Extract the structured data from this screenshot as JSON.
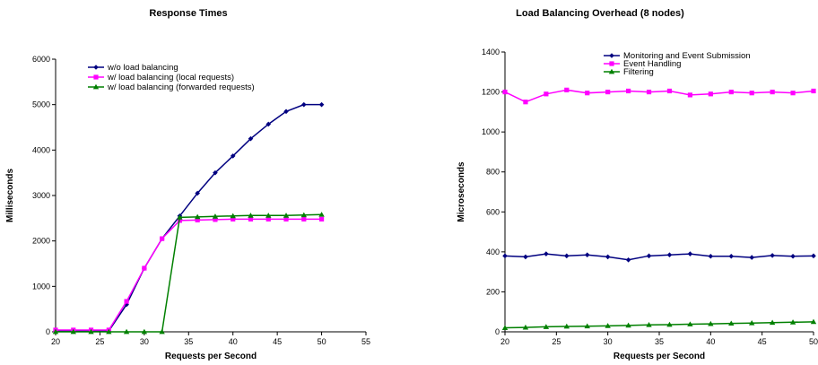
{
  "chart_data": [
    {
      "type": "line",
      "title": "Response Times",
      "xlabel": "Requests per Second",
      "ylabel": "Milliseconds",
      "xlim": [
        20,
        55
      ],
      "ylim": [
        0,
        6000
      ],
      "xticks": [
        20,
        25,
        30,
        35,
        40,
        45,
        50,
        55
      ],
      "yticks": [
        0,
        1000,
        2000,
        3000,
        4000,
        5000,
        6000
      ],
      "legend_position": "top-left",
      "grid": false,
      "series": [
        {
          "name": "w/o load balancing",
          "color": "#000080",
          "marker": "diamond",
          "x": [
            20,
            22,
            24,
            26,
            28,
            30,
            32,
            34,
            36,
            38,
            40,
            42,
            44,
            46,
            48,
            50
          ],
          "y": [
            20,
            20,
            20,
            20,
            600,
            1400,
            2050,
            2550,
            3050,
            3500,
            3870,
            4250,
            4570,
            4850,
            5000,
            5000
          ]
        },
        {
          "name": "w/ load balancing (local requests)",
          "color": "#ff00ff",
          "marker": "square",
          "x": [
            20,
            22,
            24,
            26,
            28,
            30,
            32,
            34,
            36,
            38,
            40,
            42,
            44,
            46,
            48,
            50
          ],
          "y": [
            40,
            40,
            40,
            40,
            670,
            1400,
            2050,
            2450,
            2460,
            2470,
            2480,
            2480,
            2480,
            2480,
            2480,
            2480
          ]
        },
        {
          "name": "w/ load balancing (forwarded requests)",
          "color": "#008000",
          "marker": "triangle",
          "x": [
            20,
            22,
            24,
            26,
            28,
            30,
            32,
            34,
            36,
            38,
            40,
            42,
            44,
            46,
            48,
            50
          ],
          "y": [
            0,
            0,
            0,
            0,
            0,
            0,
            0,
            2520,
            2530,
            2540,
            2550,
            2560,
            2560,
            2560,
            2570,
            2580
          ]
        }
      ]
    },
    {
      "type": "line",
      "title": "Load Balancing Overhead (8 nodes)",
      "xlabel": "Requests per Second",
      "ylabel": "Microseconds",
      "xlim": [
        20,
        50
      ],
      "ylim": [
        0,
        1400
      ],
      "xticks": [
        20,
        25,
        30,
        35,
        40,
        45,
        50
      ],
      "yticks": [
        0,
        200,
        400,
        600,
        800,
        1000,
        1200,
        1400
      ],
      "legend_position": "top-right",
      "grid": false,
      "series": [
        {
          "name": "Monitoring and Event Submission",
          "color": "#000080",
          "marker": "diamond",
          "x": [
            20,
            22,
            24,
            26,
            28,
            30,
            32,
            34,
            36,
            38,
            40,
            42,
            44,
            46,
            48,
            50
          ],
          "y": [
            380,
            375,
            390,
            380,
            385,
            375,
            360,
            380,
            385,
            390,
            378,
            378,
            372,
            382,
            378,
            380
          ]
        },
        {
          "name": "Event Handling",
          "color": "#ff00ff",
          "marker": "square",
          "x": [
            20,
            22,
            24,
            26,
            28,
            30,
            32,
            34,
            36,
            38,
            40,
            42,
            44,
            46,
            48,
            50
          ],
          "y": [
            1200,
            1150,
            1190,
            1210,
            1195,
            1200,
            1205,
            1200,
            1205,
            1185,
            1190,
            1200,
            1195,
            1200,
            1195,
            1205
          ]
        },
        {
          "name": "Filtering",
          "color": "#008000",
          "marker": "triangle",
          "x": [
            20,
            22,
            24,
            26,
            28,
            30,
            32,
            34,
            36,
            38,
            40,
            42,
            44,
            46,
            48,
            50
          ],
          "y": [
            20,
            22,
            25,
            27,
            28,
            30,
            32,
            35,
            36,
            38,
            40,
            42,
            44,
            46,
            48,
            50
          ]
        }
      ]
    }
  ]
}
